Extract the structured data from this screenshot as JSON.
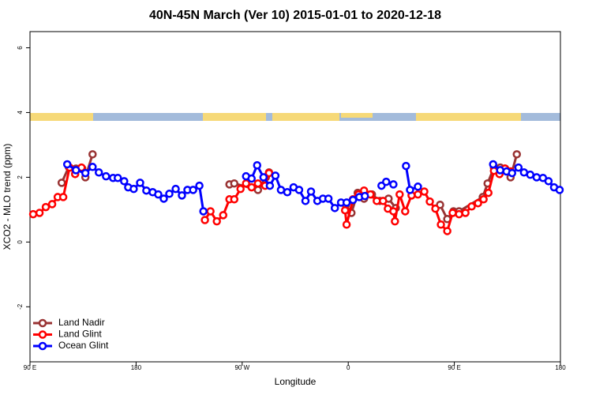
{
  "chart_data": {
    "type": "line",
    "title": "40N-45N March (Ver 10)   2015-01-01 to 2020-12-18",
    "x_label": "Longitude",
    "y_label": "XCO2 - MLO trend (ppm)",
    "xlim": [
      90,
      540
    ],
    "xticks": [
      {
        "value": 90,
        "label": "90 E"
      },
      180,
      {
        "value": 270,
        "label": "90 W"
      },
      {
        "value": 360,
        "label": "0"
      },
      {
        "value": 450,
        "label": "90 E"
      },
      {
        "value": 540,
        "label": "180"
      }
    ],
    "ylim": [
      -3.7,
      6.5
    ],
    "yticks": [
      -2,
      0,
      2,
      4,
      6
    ],
    "legend": "bottom-left",
    "series": [
      {
        "name": "Land Nadir",
        "color": "#993333",
        "x": [
          116.9,
          122.9,
          129.0,
          134.3,
          137.0,
          143.1,
          null,
          259.2,
          263.3,
          283.4,
          290.1,
          292.8,
          null,
          358.0,
          362.7,
          368.0,
          373.4,
          380.1,
          386.8,
          394.2,
          400.3,
          null,
          437.9,
          444.0,
          449.3,
          454.0,
          474.1,
          478.2,
          483.6,
          488.9,
          493.0,
          497.7,
          503.0
        ],
        "values": [
          1.83,
          2.32,
          2.27,
          2.27,
          2.0,
          2.71,
          null,
          1.78,
          1.81,
          1.61,
          2.0,
          2.15,
          null,
          1.15,
          0.9,
          1.52,
          1.34,
          1.47,
          1.27,
          1.34,
          1.05,
          null,
          1.15,
          0.71,
          0.95,
          0.95,
          1.39,
          1.81,
          2.3,
          2.3,
          2.27,
          2.0,
          2.71
        ]
      },
      {
        "name": "Land Glint",
        "color": "#ff0000",
        "x": [
          92.7,
          98.1,
          103.4,
          108.8,
          113.5,
          118.2,
          123.6,
          128.3,
          133.7,
          null,
          238.4,
          243.1,
          248.5,
          253.9,
          259.2,
          263.3,
          268.6,
          273.3,
          278.0,
          283.4,
          289.5,
          292.8,
          null,
          357.3,
          358.6,
          364.0,
          368.7,
          373.4,
          378.8,
          384.2,
          389.5,
          393.6,
          398.3,
          399.6,
          403.6,
          408.3,
          413.7,
          419.1,
          424.5,
          429.2,
          433.9,
          438.6,
          444.0,
          448.6,
          454.0,
          459.4,
          464.7,
          470.1,
          474.8,
          478.9,
          483.6,
          488.3,
          493.0,
          497.7
        ],
        "values": [
          0.86,
          0.9,
          1.08,
          1.17,
          1.39,
          1.39,
          2.3,
          2.1,
          2.3,
          null,
          0.68,
          0.95,
          0.64,
          0.83,
          1.32,
          1.32,
          1.64,
          1.81,
          1.69,
          1.81,
          1.74,
          2.13,
          null,
          0.98,
          0.54,
          1.32,
          1.47,
          1.59,
          1.47,
          1.27,
          1.27,
          1.03,
          0.95,
          0.64,
          1.47,
          0.95,
          1.44,
          1.47,
          1.56,
          1.25,
          1.03,
          0.54,
          0.34,
          0.9,
          0.86,
          0.9,
          1.1,
          1.2,
          1.32,
          1.52,
          2.2,
          2.1,
          2.27,
          2.18
        ]
      },
      {
        "name": "Ocean Glint",
        "color": "#0000ff",
        "x": [
          121.6,
          129.0,
          137.0,
          143.1,
          148.4,
          154.5,
          160.5,
          164.5,
          169.9,
          173.3,
          178.0,
          183.4,
          188.7,
          194.1,
          198.8,
          203.5,
          208.2,
          213.6,
          218.9,
          223.6,
          228.4,
          233.7,
          237.1,
          null,
          273.3,
          278.0,
          282.7,
          288.1,
          293.5,
          298.2,
          302.9,
          308.3,
          313.6,
          318.3,
          323.7,
          328.4,
          333.8,
          338.5,
          343.2,
          348.6,
          353.9,
          358.6,
          364.0,
          369.4,
          374.1,
          null,
          388.2,
          392.2,
          398.3,
          null,
          409.0,
          412.4,
          419.1,
          null,
          482.9,
          488.9,
          494.3,
          499.0,
          504.4,
          509.1,
          514.4,
          519.8,
          525.2,
          529.9,
          534.6,
          539.3
        ],
        "values": [
          2.4,
          2.22,
          2.13,
          2.32,
          2.15,
          2.03,
          1.98,
          1.98,
          1.88,
          1.69,
          1.64,
          1.83,
          1.59,
          1.54,
          1.47,
          1.34,
          1.49,
          1.64,
          1.44,
          1.61,
          1.61,
          1.74,
          0.95,
          null,
          2.03,
          1.96,
          2.37,
          2.0,
          1.74,
          2.05,
          1.61,
          1.54,
          1.69,
          1.61,
          1.27,
          1.56,
          1.27,
          1.34,
          1.34,
          1.05,
          1.22,
          1.22,
          1.3,
          1.39,
          1.42,
          null,
          1.74,
          1.86,
          1.78,
          null,
          2.35,
          1.61,
          1.71,
          null,
          2.4,
          2.22,
          2.18,
          2.13,
          2.3,
          2.15,
          2.08,
          2.0,
          1.98,
          1.88,
          1.69,
          1.61
        ]
      }
    ]
  }
}
